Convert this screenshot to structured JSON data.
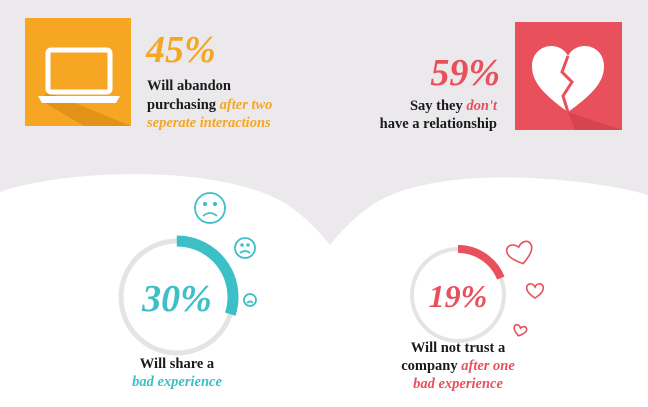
{
  "left_stat": {
    "value_label": "45%",
    "lines": [
      [
        "Will abandon"
      ],
      [
        "purchasing ",
        "after two"
      ],
      [
        "seperate interactions"
      ]
    ]
  },
  "right_stat": {
    "value_label": "59%",
    "lines": [
      [
        "Say they ",
        "don't"
      ],
      [
        "have a relationship"
      ]
    ]
  },
  "donut_left": {
    "value": 30,
    "value_label": "30%",
    "lines": [
      [
        "Will share a"
      ],
      [
        "bad experience"
      ]
    ]
  },
  "donut_right": {
    "value": 19,
    "value_label": "19%",
    "lines": [
      [
        "Will not trust a"
      ],
      [
        "company ",
        "after one"
      ],
      [
        "bad experience"
      ]
    ]
  }
}
